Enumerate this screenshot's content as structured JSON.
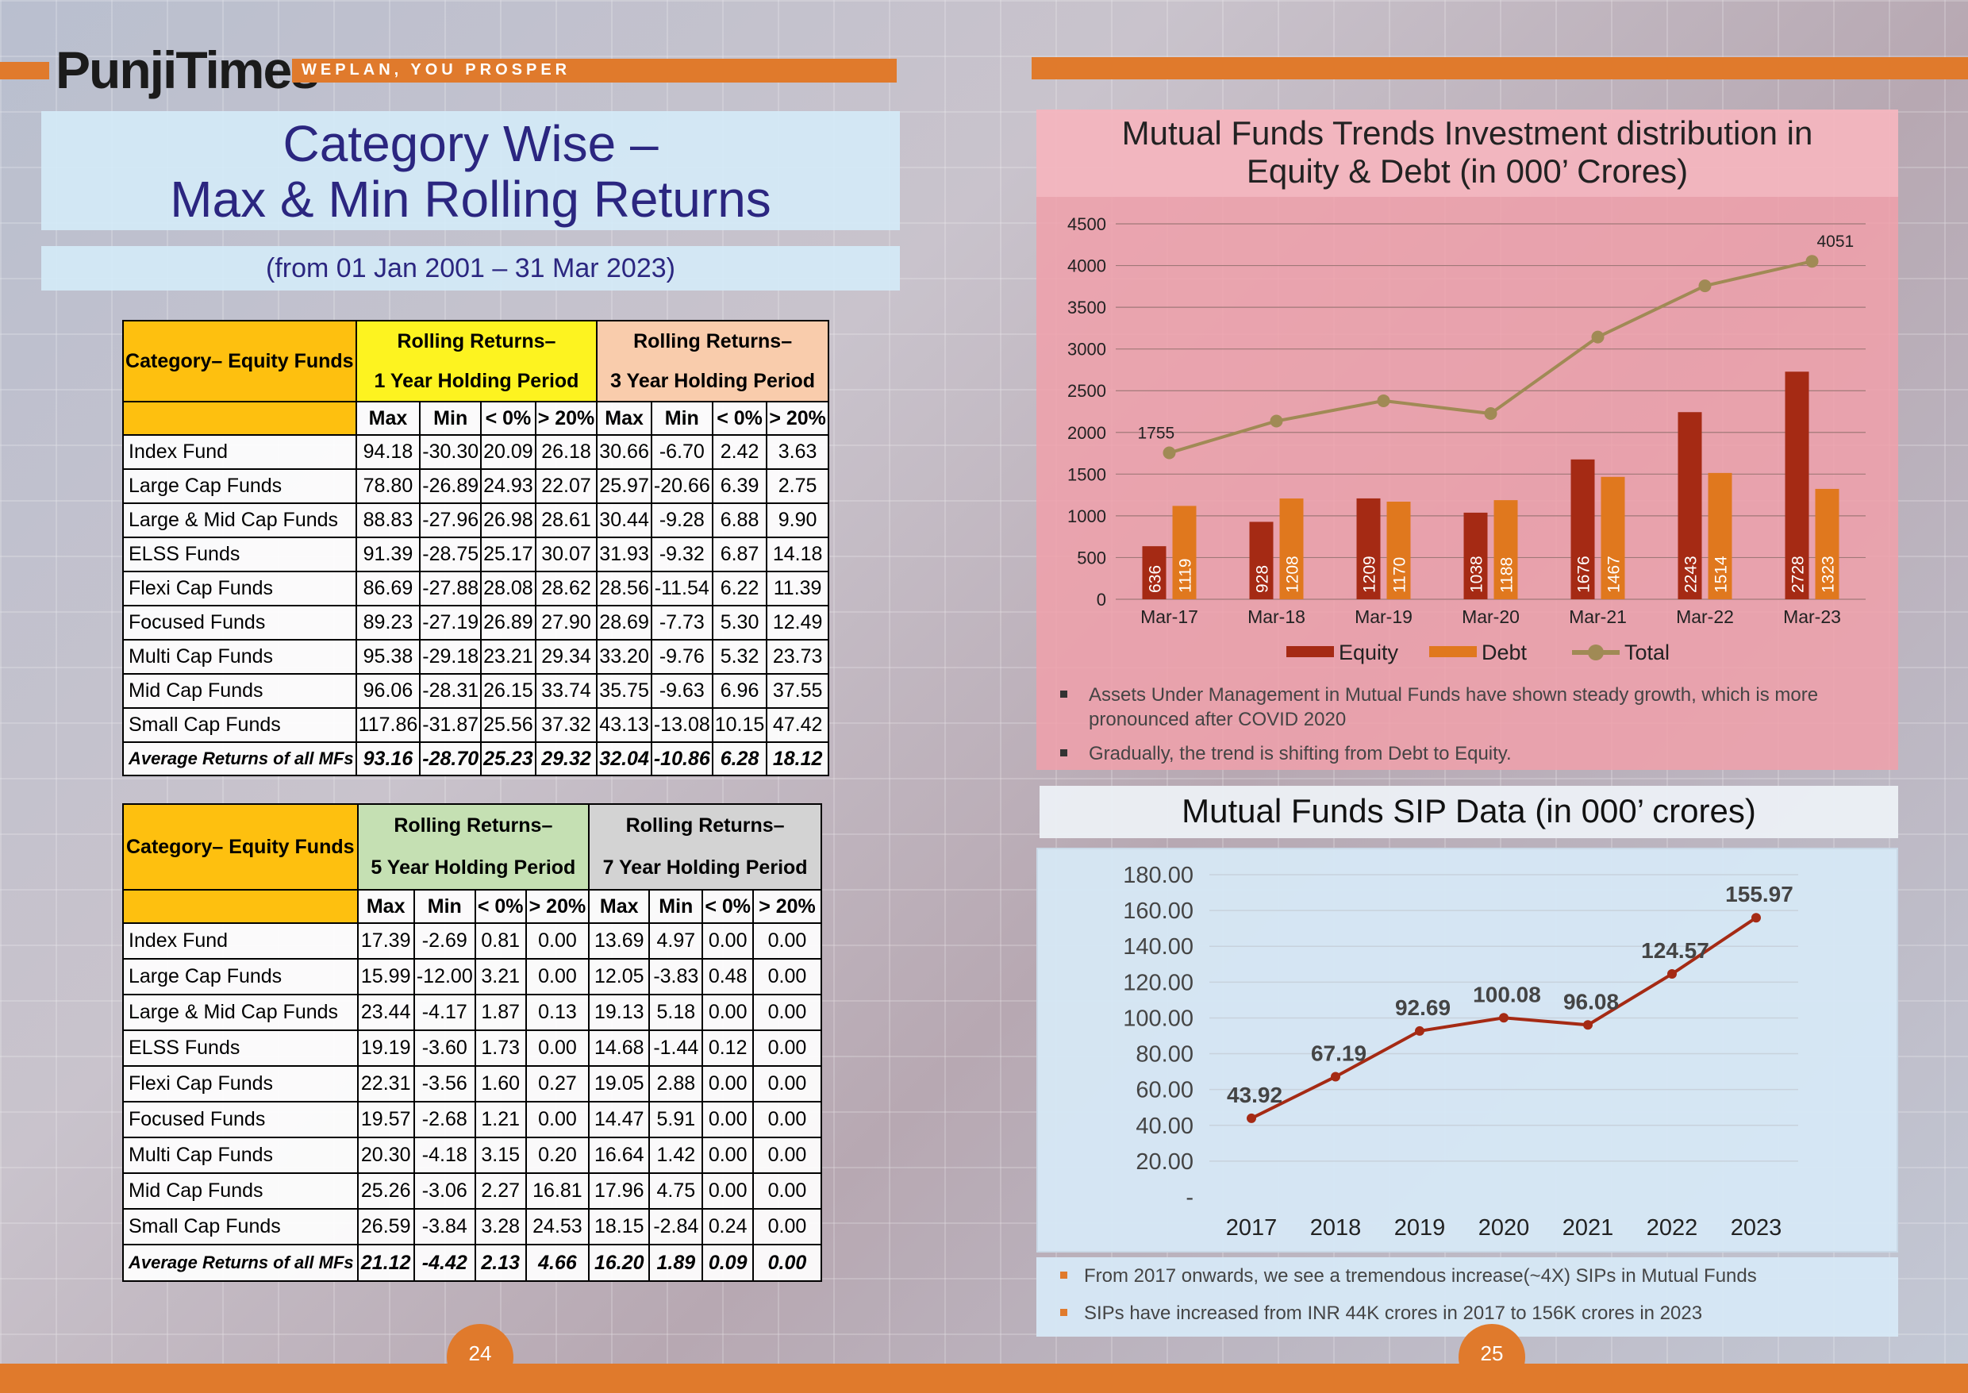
{
  "header": {
    "brand": "PunjiTimes",
    "tagline": "WEPLAN, YOU PROSPER"
  },
  "left": {
    "title_line1": "Category Wise –",
    "title_line2": "Max & Min Rolling Returns",
    "subtitle": "(from 01 Jan 2001 – 31 Mar 2023)",
    "page_number": "24",
    "table1": {
      "cat_header": "Category– Equity Funds",
      "group1_line1": "Rolling Returns–",
      "group1_line2": "1 Year Holding Period",
      "group2_line1": "Rolling Returns–",
      "group2_line2": "3 Year Holding Period",
      "sub": [
        "Max",
        "Min",
        "< 0%",
        "> 20%",
        "Max",
        "Min",
        "< 0%",
        "> 20%"
      ],
      "rows": [
        {
          "cat": "Index Fund",
          "v": [
            "94.18",
            "-30.30",
            "20.09",
            "26.18",
            "30.66",
            "-6.70",
            "2.42",
            "3.63"
          ]
        },
        {
          "cat": "Large Cap Funds",
          "v": [
            "78.80",
            "-26.89",
            "24.93",
            "22.07",
            "25.97",
            "-20.66",
            "6.39",
            "2.75"
          ]
        },
        {
          "cat": "Large & Mid Cap Funds",
          "v": [
            "88.83",
            "-27.96",
            "26.98",
            "28.61",
            "30.44",
            "-9.28",
            "6.88",
            "9.90"
          ]
        },
        {
          "cat": "ELSS Funds",
          "v": [
            "91.39",
            "-28.75",
            "25.17",
            "30.07",
            "31.93",
            "-9.32",
            "6.87",
            "14.18"
          ]
        },
        {
          "cat": "Flexi Cap Funds",
          "v": [
            "86.69",
            "-27.88",
            "28.08",
            "28.62",
            "28.56",
            "-11.54",
            "6.22",
            "11.39"
          ]
        },
        {
          "cat": "Focused Funds",
          "v": [
            "89.23",
            "-27.19",
            "26.89",
            "27.90",
            "28.69",
            "-7.73",
            "5.30",
            "12.49"
          ]
        },
        {
          "cat": "Multi Cap Funds",
          "v": [
            "95.38",
            "-29.18",
            "23.21",
            "29.34",
            "33.20",
            "-9.76",
            "5.32",
            "23.73"
          ]
        },
        {
          "cat": "Mid Cap Funds",
          "v": [
            "96.06",
            "-28.31",
            "26.15",
            "33.74",
            "35.75",
            "-9.63",
            "6.96",
            "37.55"
          ]
        },
        {
          "cat": "Small Cap Funds",
          "v": [
            "117.86",
            "-31.87",
            "25.56",
            "37.32",
            "43.13",
            "-13.08",
            "10.15",
            "47.42"
          ]
        }
      ],
      "avg": {
        "cat": "Average Returns of all MFs",
        "v": [
          "93.16",
          "-28.70",
          "25.23",
          "29.32",
          "32.04",
          "-10.86",
          "6.28",
          "18.12"
        ]
      }
    },
    "table2": {
      "cat_header": "Category– Equity Funds",
      "group1_line1": "Rolling Returns–",
      "group1_line2": "5 Year Holding Period",
      "group2_line1": "Rolling Returns–",
      "group2_line2": "7 Year Holding Period",
      "sub": [
        "Max",
        "Min",
        "< 0%",
        "> 20%",
        "Max",
        "Min",
        "< 0%",
        "> 20%"
      ],
      "rows": [
        {
          "cat": "Index Fund",
          "v": [
            "17.39",
            "-2.69",
            "0.81",
            "0.00",
            "13.69",
            "4.97",
            "0.00",
            "0.00"
          ]
        },
        {
          "cat": "Large Cap Funds",
          "v": [
            "15.99",
            "-12.00",
            "3.21",
            "0.00",
            "12.05",
            "-3.83",
            "0.48",
            "0.00"
          ]
        },
        {
          "cat": "Large & Mid Cap Funds",
          "v": [
            "23.44",
            "-4.17",
            "1.87",
            "0.13",
            "19.13",
            "5.18",
            "0.00",
            "0.00"
          ]
        },
        {
          "cat": "ELSS Funds",
          "v": [
            "19.19",
            "-3.60",
            "1.73",
            "0.00",
            "14.68",
            "-1.44",
            "0.12",
            "0.00"
          ]
        },
        {
          "cat": "Flexi Cap Funds",
          "v": [
            "22.31",
            "-3.56",
            "1.60",
            "0.27",
            "19.05",
            "2.88",
            "0.00",
            "0.00"
          ]
        },
        {
          "cat": "Focused Funds",
          "v": [
            "19.57",
            "-2.68",
            "1.21",
            "0.00",
            "14.47",
            "5.91",
            "0.00",
            "0.00"
          ]
        },
        {
          "cat": "Multi Cap Funds",
          "v": [
            "20.30",
            "-4.18",
            "3.15",
            "0.20",
            "16.64",
            "1.42",
            "0.00",
            "0.00"
          ]
        },
        {
          "cat": "Mid Cap Funds",
          "v": [
            "25.26",
            "-3.06",
            "2.27",
            "16.81",
            "17.96",
            "4.75",
            "0.00",
            "0.00"
          ]
        },
        {
          "cat": "Small Cap Funds",
          "v": [
            "26.59",
            "-3.84",
            "3.28",
            "24.53",
            "18.15",
            "-2.84",
            "0.24",
            "0.00"
          ]
        }
      ],
      "avg": {
        "cat": "Average Returns of all MFs",
        "v": [
          "21.12",
          "-4.42",
          "2.13",
          "4.66",
          "16.20",
          "1.89",
          "0.09",
          "0.00"
        ]
      }
    }
  },
  "right": {
    "page_number": "25",
    "chart1_title_line1": "Mutual Funds Trends Investment distribution in",
    "chart1_title_line2": "Equity & Debt (in 000’ Crores)",
    "bullets1": [
      "Assets Under Management in Mutual Funds have shown steady growth, which is more pronounced after COVID 2020",
      "Gradually, the trend is shifting from Debt to Equity."
    ],
    "chart2_title": "Mutual Funds SIP Data (in 000’ crores)",
    "bullets2": [
      "From 2017 onwards, we see a tremendous increase(~4X) SIPs in Mutual Funds",
      "SIPs have increased from INR 44K crores in 2017 to 156K crores in 2023"
    ]
  },
  "chart_data": [
    {
      "type": "bar",
      "title": "Mutual Funds Trends Investment distribution in Equity & Debt (in 000’ Crores)",
      "categories": [
        "Mar-17",
        "Mar-18",
        "Mar-19",
        "Mar-20",
        "Mar-21",
        "Mar-22",
        "Mar-23"
      ],
      "series": [
        {
          "name": "Equity",
          "kind": "bar",
          "color": "#a52a14",
          "values": [
            636,
            928,
            1209,
            1038,
            1676,
            2243,
            2728
          ]
        },
        {
          "name": "Debt",
          "kind": "bar",
          "color": "#e0781e",
          "values": [
            1119,
            1208,
            1170,
            1188,
            1467,
            1514,
            1323
          ]
        },
        {
          "name": "Total",
          "kind": "line",
          "color": "#a08a55",
          "values": [
            1755,
            2136,
            2379,
            2226,
            3143,
            3757,
            4051
          ]
        }
      ],
      "total_labels": [
        {
          "index": 0,
          "text": "1755"
        },
        {
          "index": 6,
          "text": "4051"
        }
      ],
      "yticks": [
        "0",
        "500",
        "1000",
        "1500",
        "2000",
        "2500",
        "3000",
        "3500",
        "4000",
        "4500"
      ],
      "ylim": [
        0,
        4500
      ],
      "grid": true,
      "legend": "bottom"
    },
    {
      "type": "line",
      "title": "Mutual Funds SIP Data (in 000’ crores)",
      "categories": [
        "2017",
        "2018",
        "2019",
        "2020",
        "2021",
        "2022",
        "2023"
      ],
      "series": [
        {
          "color": "#a52a14",
          "values": [
            43.92,
            67.19,
            92.69,
            100.08,
            96.08,
            124.57,
            155.97
          ]
        }
      ],
      "data_labels": [
        "43.92",
        "67.19",
        "92.69",
        "100.08",
        "96.08",
        "124.57",
        "155.97"
      ],
      "yticks": [
        "-",
        "20.00",
        "40.00",
        "60.00",
        "80.00",
        "100.00",
        "120.00",
        "140.00",
        "160.00",
        "180.00"
      ],
      "ylim": [
        0,
        180
      ],
      "grid": true
    }
  ]
}
